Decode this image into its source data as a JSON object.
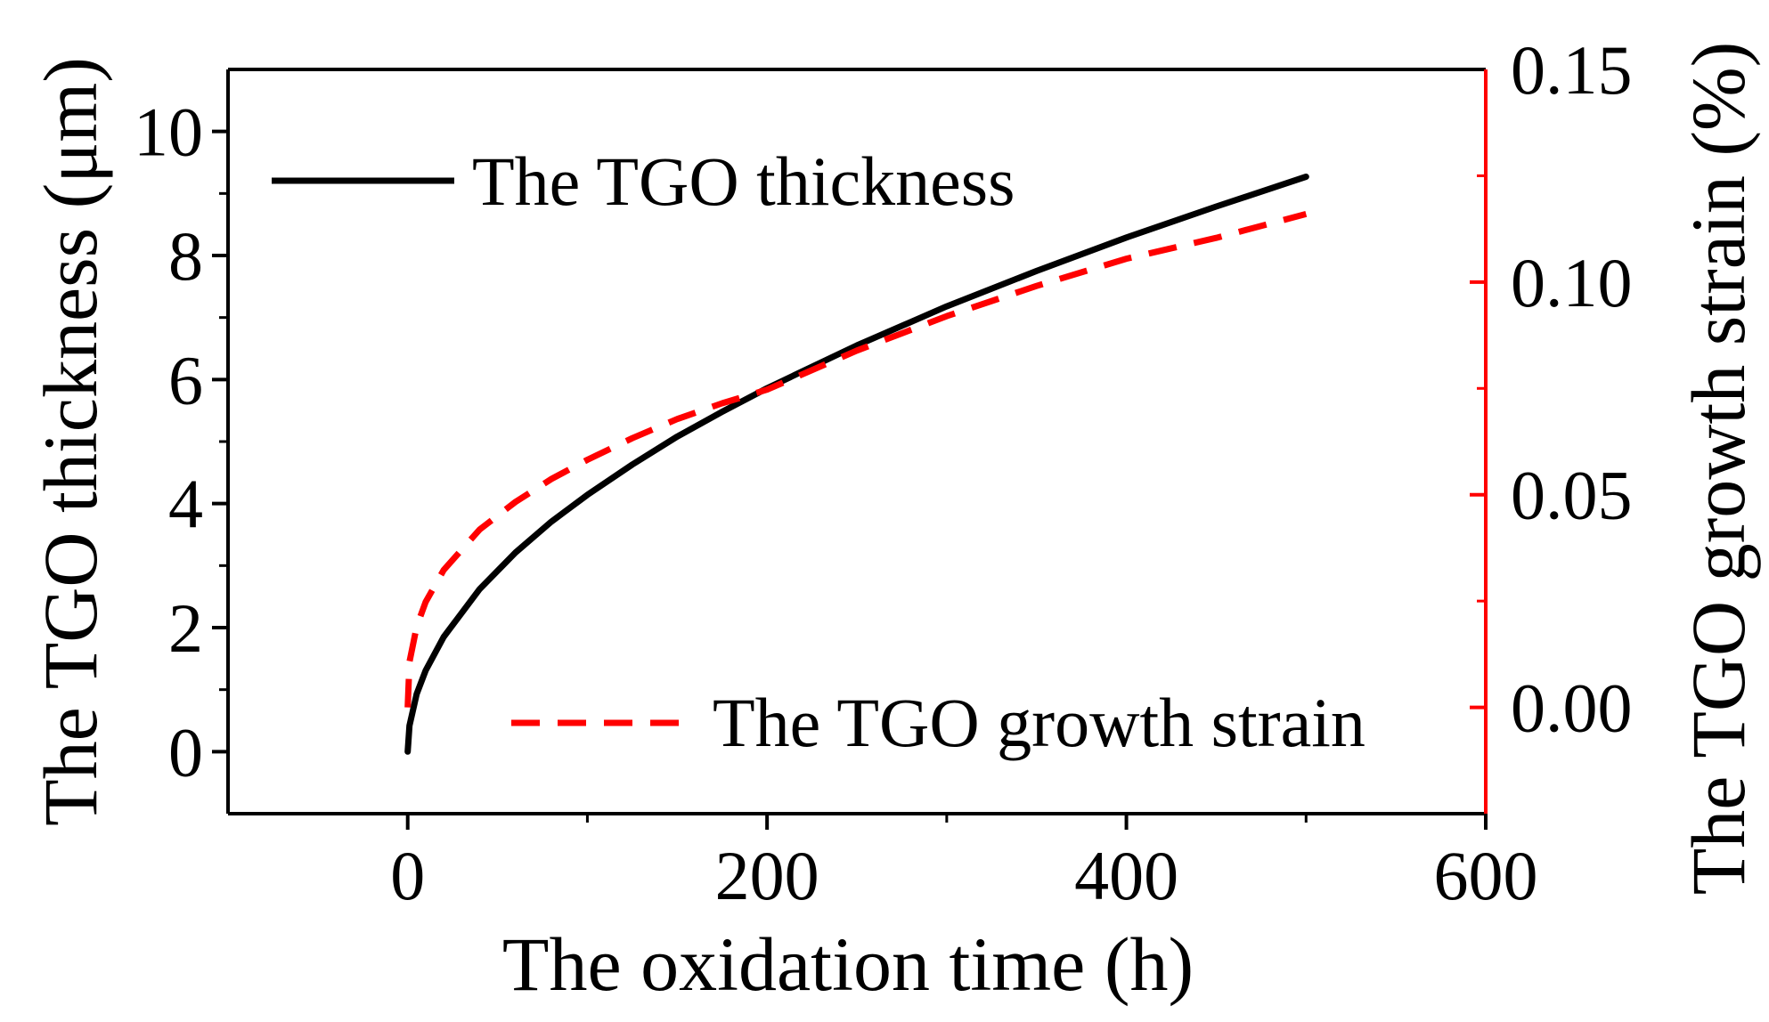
{
  "chart_data": {
    "type": "line",
    "title": "",
    "xlabel": "The oxidation time (h)",
    "ylabel": "The TGO thickness (μm)",
    "y2label": "The TGO growth strain (%)",
    "xlim": [
      -100,
      600
    ],
    "ylim": [
      -1,
      11
    ],
    "y2lim": [
      -0.025,
      0.15
    ],
    "xticks": [
      0,
      200,
      400,
      600
    ],
    "xtick_labels": [
      "0",
      "200",
      "400",
      "600"
    ],
    "yticks": [
      0,
      2,
      4,
      6,
      8,
      10
    ],
    "ytick_labels": [
      "0",
      "2",
      "4",
      "6",
      "8",
      "10"
    ],
    "y2ticks": [
      0.0,
      0.05,
      0.1,
      0.15
    ],
    "y2tick_labels": [
      "0.00",
      "0.05",
      "0.10",
      "0.15"
    ],
    "grid": false,
    "series": [
      {
        "name": "The TGO thickness",
        "axis": "left",
        "color": "#000000",
        "style": "solid",
        "x": [
          0,
          1,
          5,
          10,
          20,
          40,
          60,
          80,
          100,
          125,
          150,
          175,
          200,
          250,
          300,
          350,
          400,
          450,
          500
        ],
        "y": [
          0.0,
          0.42,
          0.93,
          1.31,
          1.85,
          2.62,
          3.21,
          3.71,
          4.14,
          4.63,
          5.08,
          5.48,
          5.86,
          6.55,
          7.18,
          7.75,
          8.29,
          8.79,
          9.27
        ]
      },
      {
        "name": "The TGO growth strain",
        "axis": "right",
        "color": "#ff0000",
        "style": "dashed",
        "x": [
          0,
          1,
          5,
          10,
          20,
          40,
          60,
          80,
          100,
          125,
          150,
          175,
          200,
          250,
          300,
          350,
          400,
          450,
          500
        ],
        "y": [
          0.0,
          0.0107,
          0.019,
          0.0248,
          0.0323,
          0.0418,
          0.0483,
          0.0537,
          0.0582,
          0.0633,
          0.0678,
          0.0715,
          0.0747,
          0.0839,
          0.092,
          0.0991,
          0.1055,
          0.1104,
          0.116
        ]
      }
    ],
    "legend": [
      {
        "label": "The TGO thickness",
        "position": "top-left"
      },
      {
        "label": "The TGO growth strain",
        "position": "bottom-right"
      }
    ]
  }
}
